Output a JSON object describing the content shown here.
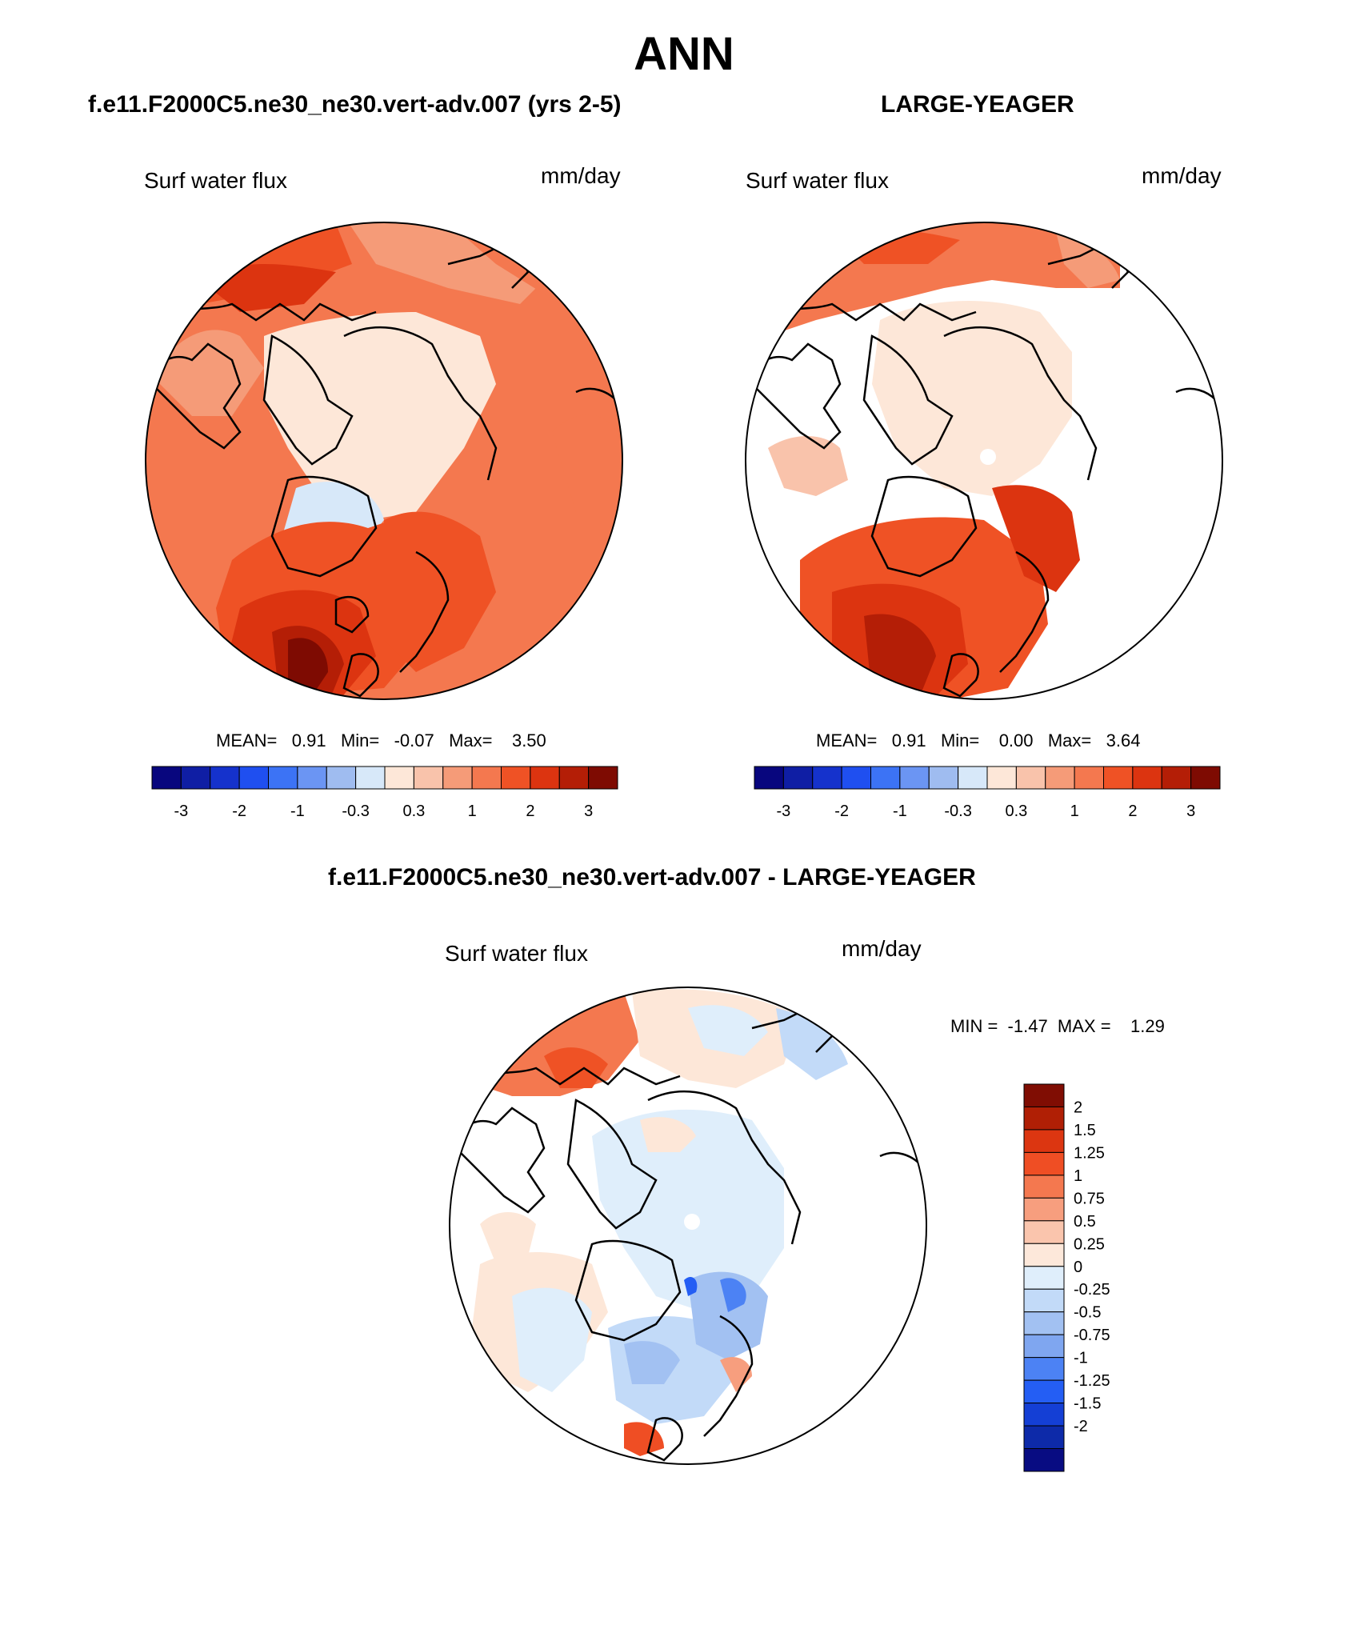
{
  "figure": {
    "title": "ANN"
  },
  "panels": [
    {
      "title": "f.e11.F2000C5.ne30_ne30.vert-adv.007 (yrs 2-5)",
      "variable": "Surf water flux",
      "units": "mm/day",
      "stats": {
        "mean_label": "MEAN=",
        "mean": "0.91",
        "min_label": "Min=",
        "min": "-0.07",
        "max_label": "Max=",
        "max": "3.50"
      },
      "colorbar": {
        "orientation": "horizontal",
        "colors": [
          "#08067e",
          "#0f1ea4",
          "#1532cc",
          "#1f4ff0",
          "#3c73f5",
          "#6b95f3",
          "#9fbcf0",
          "#d7e8f9",
          "#fde7d8",
          "#f9c3ab",
          "#f59b78",
          "#f4784f",
          "#ef5225",
          "#dc3410",
          "#b41e06",
          "#7e0b02"
        ],
        "tick_labels": [
          "-3",
          "-2",
          "-1",
          "-0.3",
          "0.3",
          "1",
          "2",
          "3"
        ]
      }
    },
    {
      "title": "LARGE-YEAGER",
      "variable": "Surf water flux",
      "units": "mm/day",
      "stats": {
        "mean_label": "MEAN=",
        "mean": "0.91",
        "min_label": "Min=",
        "min": "0.00",
        "max_label": "Max=",
        "max": "3.64"
      },
      "colorbar": {
        "orientation": "horizontal",
        "colors": [
          "#08067e",
          "#0f1ea4",
          "#1532cc",
          "#1f4ff0",
          "#3c73f5",
          "#6b95f3",
          "#9fbcf0",
          "#d7e8f9",
          "#fde7d8",
          "#f9c3ab",
          "#f59b78",
          "#f4784f",
          "#ef5225",
          "#dc3410",
          "#b41e06",
          "#7e0b02"
        ],
        "tick_labels": [
          "-3",
          "-2",
          "-1",
          "-0.3",
          "0.3",
          "1",
          "2",
          "3"
        ]
      }
    },
    {
      "title": "f.e11.F2000C5.ne30_ne30.vert-adv.007 - LARGE-YEAGER",
      "variable": "Surf water flux",
      "units": "mm/day",
      "stats": {
        "min_label": "MIN =",
        "min": "-1.47",
        "max_label": "MAX =",
        "max": "1.29"
      },
      "colorbar": {
        "orientation": "vertical",
        "colors": [
          "#800d03",
          "#b01f05",
          "#dc3611",
          "#ef4e24",
          "#f4784f",
          "#f79e7e",
          "#fac5ad",
          "#fde8da",
          "#dfeefb",
          "#c2daf8",
          "#a2c1f2",
          "#7fa6f0",
          "#4c82f4",
          "#245ef4",
          "#143fd5",
          "#0d2aa9",
          "#080c82"
        ],
        "tick_labels": [
          "2",
          "1.5",
          "1.25",
          "1",
          "0.75",
          "0.5",
          "0.25",
          "0",
          "-0.25",
          "-0.5",
          "-0.75",
          "-1",
          "-1.25",
          "-1.5",
          "-2"
        ]
      }
    }
  ]
}
